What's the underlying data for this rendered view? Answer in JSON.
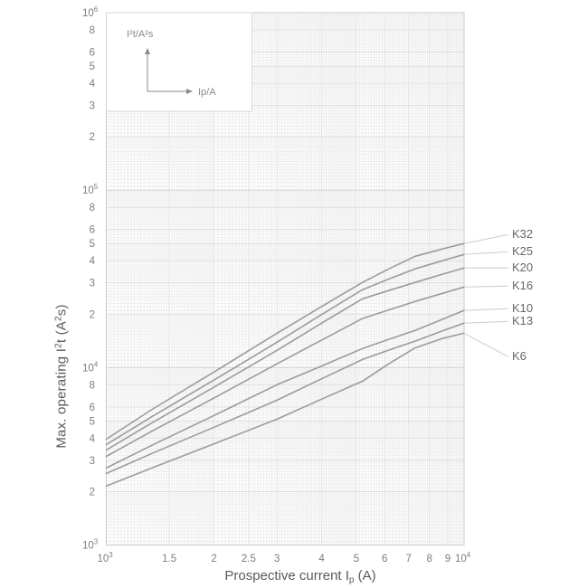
{
  "figure": {
    "background": "#ffffff"
  },
  "chart_data": {
    "type": "line",
    "title": "",
    "xlabel_parts": {
      "pre": "Prospective current I",
      "sub": "p",
      "post": " (A)"
    },
    "ylabel_parts": {
      "pre": "Max. operating I",
      "sup1": "2",
      "mid": "t  (A",
      "sup2": "2",
      "post": "s)"
    },
    "x_axis": {
      "scale": "log",
      "min": 1000,
      "max": 10000,
      "ticks": [
        {
          "v": 1000,
          "base": "10",
          "sup": "3"
        },
        {
          "v": 1500,
          "base": "1.5"
        },
        {
          "v": 2000,
          "base": "2"
        },
        {
          "v": 2500,
          "base": "2.5"
        },
        {
          "v": 3000,
          "base": "3"
        },
        {
          "v": 4000,
          "base": "4"
        },
        {
          "v": 5000,
          "base": "5"
        },
        {
          "v": 6000,
          "base": "6"
        },
        {
          "v": 7000,
          "base": "7"
        },
        {
          "v": 8000,
          "base": "8"
        },
        {
          "v": 9000,
          "base": "9"
        },
        {
          "v": 10000,
          "base": "10",
          "sup": "4"
        }
      ]
    },
    "y_axis": {
      "scale": "log",
      "min": 1000,
      "max": 1000000,
      "ticks": [
        {
          "v": 1000000,
          "base": "10",
          "sup": "6"
        },
        {
          "v": 800000,
          "base": "8"
        },
        {
          "v": 600000,
          "base": "6"
        },
        {
          "v": 500000,
          "base": "5"
        },
        {
          "v": 400000,
          "base": "4"
        },
        {
          "v": 300000,
          "base": "3"
        },
        {
          "v": 200000,
          "base": "2"
        },
        {
          "v": 100000,
          "base": "10",
          "sup": "5"
        },
        {
          "v": 80000,
          "base": "8"
        },
        {
          "v": 60000,
          "base": "6"
        },
        {
          "v": 50000,
          "base": "5"
        },
        {
          "v": 40000,
          "base": "4"
        },
        {
          "v": 30000,
          "base": "3"
        },
        {
          "v": 20000,
          "base": "2"
        },
        {
          "v": 10000,
          "base": "10",
          "sup": "4"
        },
        {
          "v": 8000,
          "base": "8"
        },
        {
          "v": 6000,
          "base": "6"
        },
        {
          "v": 5000,
          "base": "5"
        },
        {
          "v": 4000,
          "base": "4"
        },
        {
          "v": 3000,
          "base": "3"
        },
        {
          "v": 2000,
          "base": "2"
        },
        {
          "v": 1000,
          "base": "10",
          "sup": "3"
        }
      ]
    },
    "inset": {
      "ylabel": "I²t/A²s",
      "xlabel": "Ip/A"
    },
    "legend": {
      "position": "right",
      "entries": [
        "K32",
        "K25",
        "K20",
        "K16",
        "K10",
        "K13",
        "K6"
      ]
    },
    "series": [
      {
        "name": "K32",
        "points": [
          [
            1000,
            3950
          ],
          [
            1350,
            5850
          ],
          [
            2000,
            9450
          ],
          [
            3000,
            15600
          ],
          [
            4000,
            22100
          ],
          [
            5200,
            30200
          ],
          [
            6200,
            36200
          ],
          [
            7300,
            42400
          ],
          [
            8700,
            46600
          ],
          [
            10000,
            50000
          ]
        ]
      },
      {
        "name": "K25",
        "points": [
          [
            1000,
            3680
          ],
          [
            1350,
            5330
          ],
          [
            2000,
            8510
          ],
          [
            3000,
            13900
          ],
          [
            4000,
            19900
          ],
          [
            5200,
            27500
          ],
          [
            6200,
            31700
          ],
          [
            7300,
            36000
          ],
          [
            8700,
            40000
          ],
          [
            10000,
            43400
          ]
        ]
      },
      {
        "name": "K20",
        "points": [
          [
            1000,
            3430
          ],
          [
            1350,
            4920
          ],
          [
            2000,
            7760
          ],
          [
            3000,
            12500
          ],
          [
            4000,
            17800
          ],
          [
            5200,
            24400
          ],
          [
            6200,
            27300
          ],
          [
            7300,
            30200
          ],
          [
            8700,
            33600
          ],
          [
            10000,
            36400
          ]
        ]
      },
      {
        "name": "K16",
        "points": [
          [
            1000,
            3160
          ],
          [
            1350,
            4410
          ],
          [
            2000,
            6740
          ],
          [
            3000,
            10500
          ],
          [
            4000,
            14300
          ],
          [
            5200,
            18900
          ],
          [
            6200,
            21200
          ],
          [
            7300,
            23600
          ],
          [
            8700,
            26200
          ],
          [
            10000,
            28450
          ]
        ]
      },
      {
        "name": "K10",
        "points": [
          [
            1000,
            2720
          ],
          [
            1350,
            3670
          ],
          [
            2000,
            5370
          ],
          [
            3000,
            8000
          ],
          [
            4000,
            10200
          ],
          [
            5200,
            12800
          ],
          [
            6200,
            14500
          ],
          [
            7300,
            16200
          ],
          [
            8700,
            18700
          ],
          [
            10000,
            21000
          ]
        ]
      },
      {
        "name": "K13",
        "points": [
          [
            1000,
            2530
          ],
          [
            1350,
            3300
          ],
          [
            2000,
            4610
          ],
          [
            3000,
            6550
          ],
          [
            4000,
            8650
          ],
          [
            5200,
            11100
          ],
          [
            6200,
            12600
          ],
          [
            7300,
            14100
          ],
          [
            8700,
            16100
          ],
          [
            10000,
            17800
          ]
        ]
      },
      {
        "name": "K6",
        "points": [
          [
            1000,
            2150
          ],
          [
            1350,
            2730
          ],
          [
            2000,
            3720
          ],
          [
            3000,
            5120
          ],
          [
            4000,
            6640
          ],
          [
            5200,
            8380
          ],
          [
            6200,
            10600
          ],
          [
            7300,
            12900
          ],
          [
            8700,
            14600
          ],
          [
            10000,
            15600
          ]
        ]
      }
    ],
    "colors": {
      "curve": "#9b9b9b",
      "leader": "#cccccc",
      "grid_minor": "#eeeeee",
      "grid_major": "#dcdcdc",
      "grid_decade": "#d0d0d0",
      "border": "#c9c9c9",
      "tick_text": "#7d7d7d",
      "inset_text": "#8a8a8a",
      "inset_border": "#d6d6d6"
    }
  }
}
